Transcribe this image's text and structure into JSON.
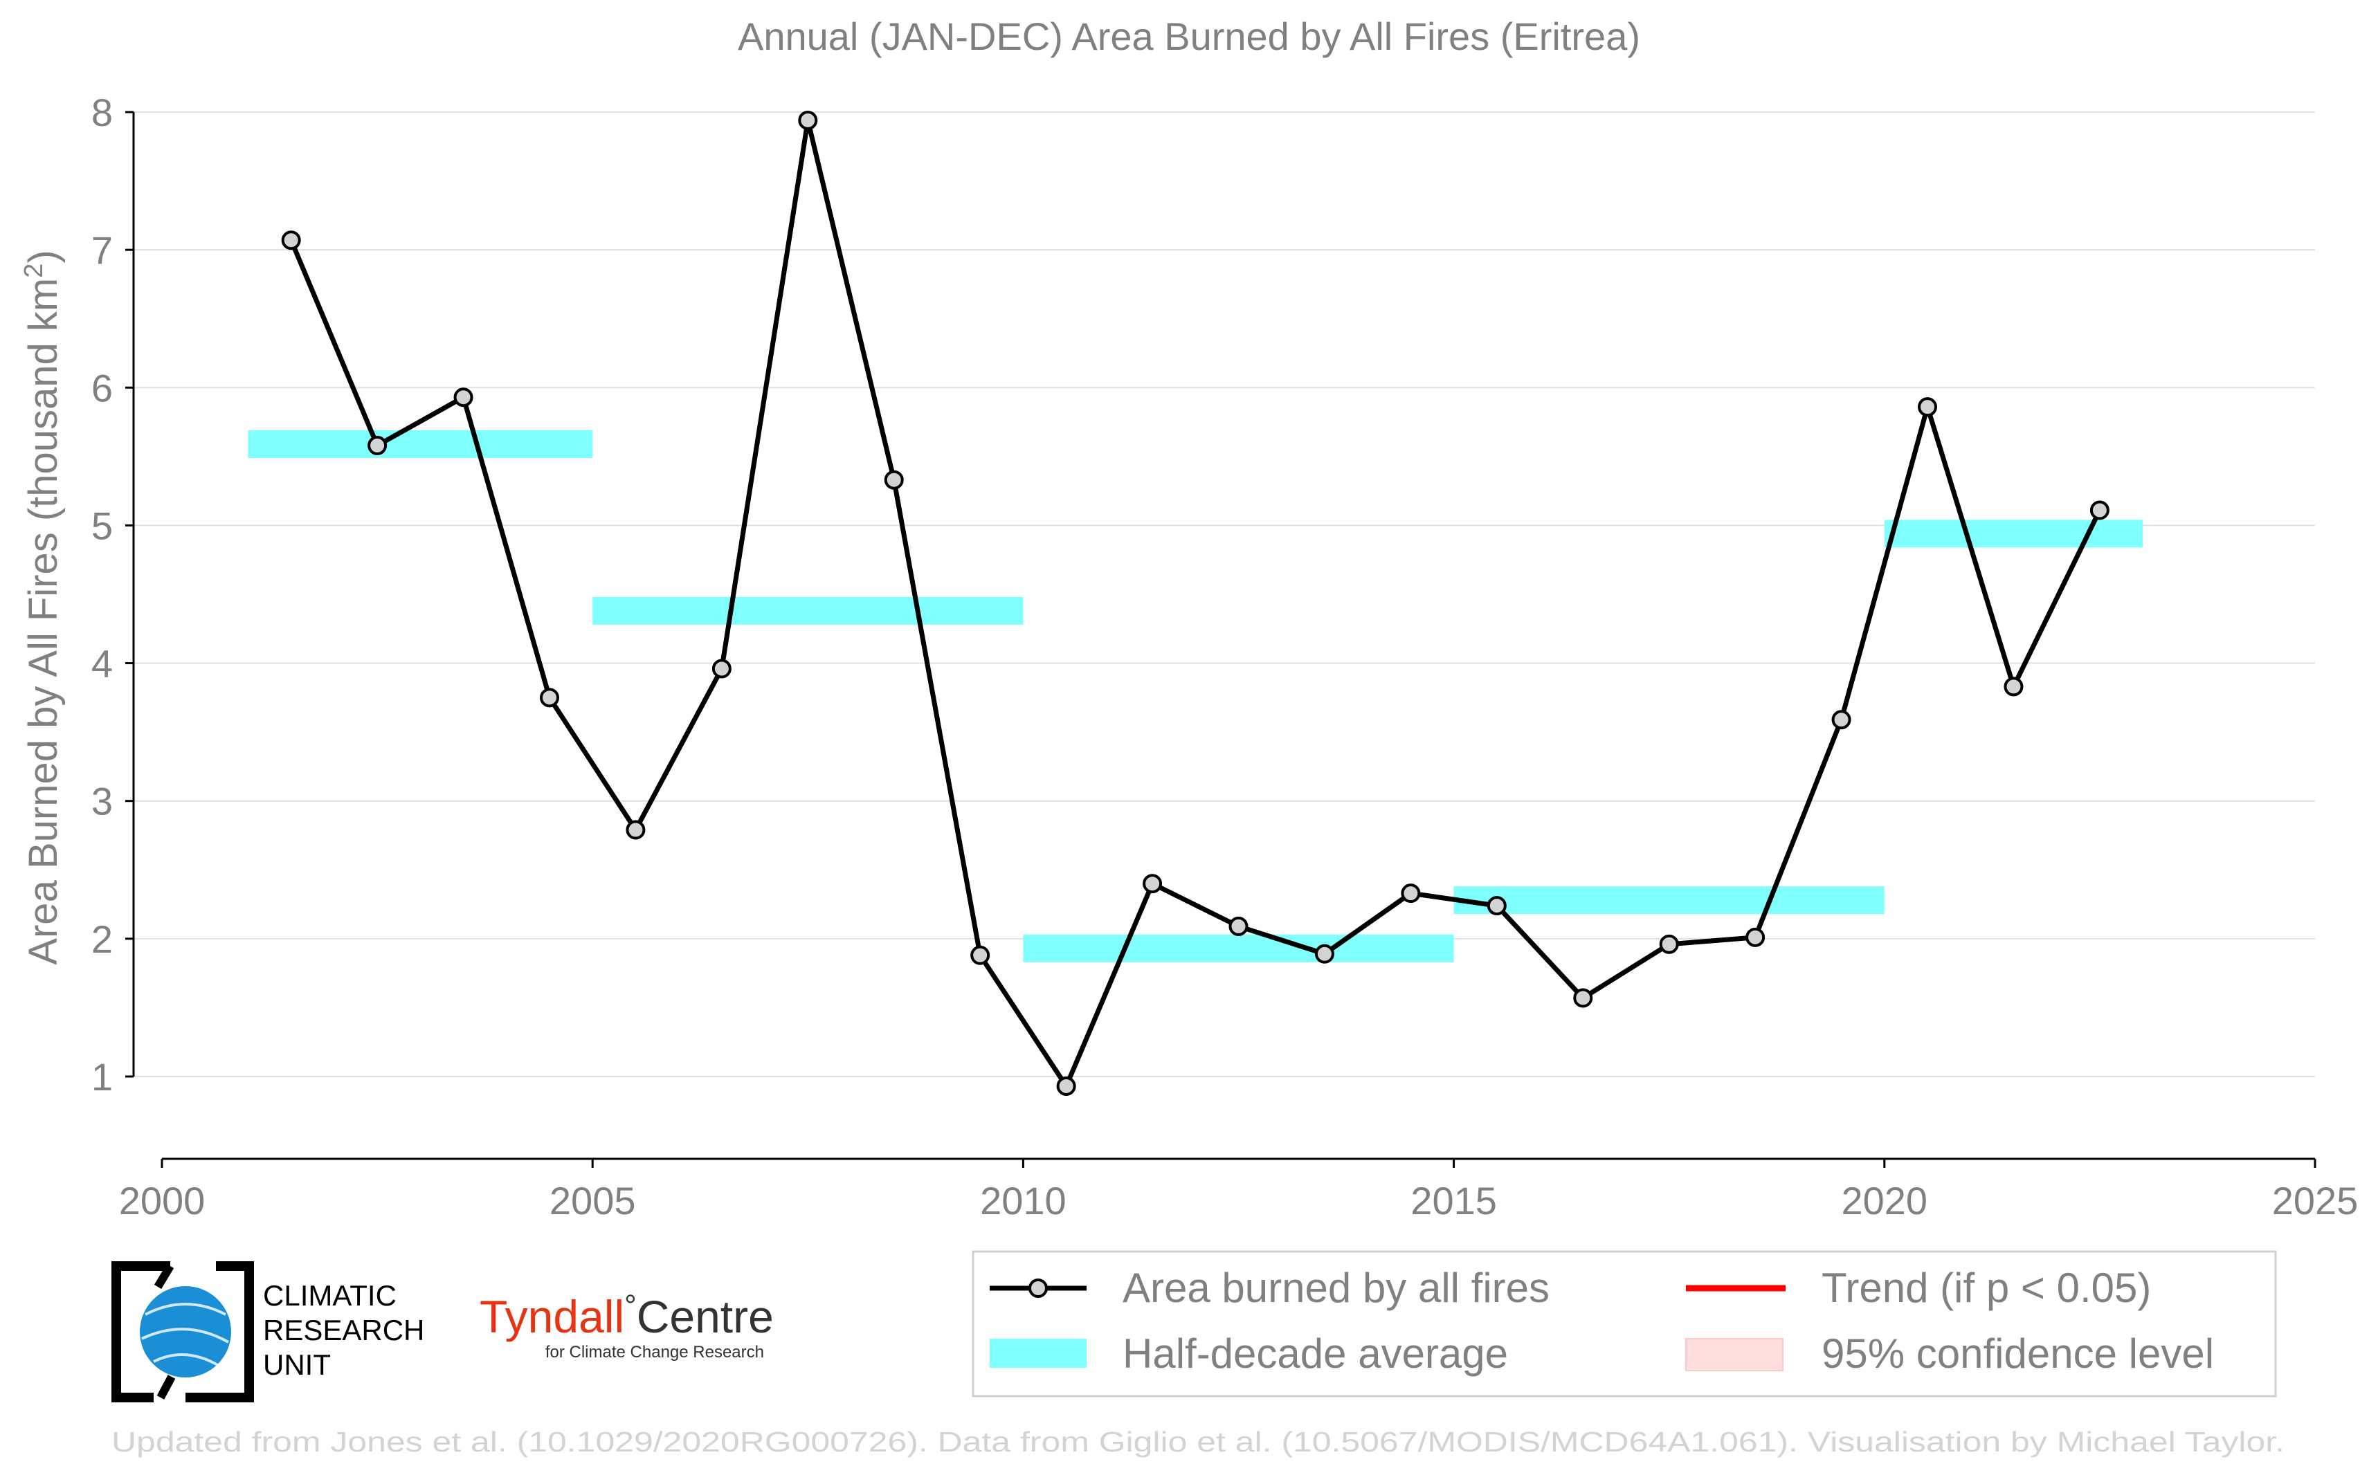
{
  "chart_data": {
    "type": "line",
    "title": "Annual (JAN-DEC) Area Burned by All Fires (Eritrea)",
    "ylabel": "Area Burned by All Fires (thousand km",
    "ylabel_sup": "2",
    "ylabel_end": ")",
    "xlabel": "",
    "xlim": [
      2000,
      2025
    ],
    "ylim": [
      0.4,
      8.2
    ],
    "x_ticks": [
      2000,
      2005,
      2010,
      2015,
      2020,
      2025
    ],
    "x_tick_labels": [
      "2000",
      "2005",
      "2010",
      "2015",
      "2020",
      "2025"
    ],
    "y_ticks": [
      1,
      2,
      3,
      4,
      5,
      6,
      7,
      8
    ],
    "y_tick_labels": [
      "1",
      "2",
      "3",
      "4",
      "5",
      "6",
      "7",
      "8"
    ],
    "grid": "horizontal",
    "series": [
      {
        "name": "Area burned by all fires",
        "color": "#000000",
        "marker_color": "#d3d3d3",
        "x": [
          2001.5,
          2002.5,
          2003.5,
          2004.5,
          2005.5,
          2006.5,
          2007.5,
          2008.5,
          2009.5,
          2010.5,
          2011.5,
          2012.5,
          2013.5,
          2014.5,
          2015.5,
          2016.5,
          2017.5,
          2018.5,
          2019.5,
          2020.5,
          2021.5,
          2022.5
        ],
        "values": [
          7.07,
          5.58,
          5.93,
          3.75,
          2.79,
          3.96,
          7.94,
          5.33,
          1.88,
          0.93,
          2.4,
          2.09,
          1.89,
          2.33,
          2.24,
          1.57,
          1.96,
          2.01,
          3.59,
          5.86,
          3.83,
          5.11
        ]
      }
    ],
    "half_decade_averages": {
      "name": "Half-decade average",
      "color": "#80ffff",
      "segments": [
        {
          "x_start": 2001,
          "x_end": 2005,
          "value": 5.59
        },
        {
          "x_start": 2005,
          "x_end": 2010,
          "value": 4.38
        },
        {
          "x_start": 2010,
          "x_end": 2015,
          "value": 1.93
        },
        {
          "x_start": 2015,
          "x_end": 2020,
          "value": 2.28
        },
        {
          "x_start": 2020,
          "x_end": 2023,
          "value": 4.94
        }
      ]
    },
    "legend": {
      "placement": "bottom-right",
      "entries": [
        {
          "label": "Area burned by all fires",
          "kind": "line-marker",
          "color": "#000000"
        },
        {
          "label": "Trend (if p < 0.05)",
          "kind": "line",
          "color": "#ff0000"
        },
        {
          "label": "Half-decade average",
          "kind": "patch",
          "color": "#80ffff"
        },
        {
          "label": "95% confidence level",
          "kind": "patch",
          "color": "#ffdede"
        }
      ]
    }
  },
  "logos": {
    "cru_text_line1": "CLIMATIC",
    "cru_text_line2": "RESEARCH",
    "cru_text_line3": "UNIT",
    "tyndall_name": "Tyndall",
    "tyndall_degree": "°",
    "tyndall_centre": "Centre",
    "tyndall_sub": "for Climate Change Research",
    "tyndall_color": "#e63312",
    "cru_globe_color": "#1b8fd6"
  },
  "footer": {
    "credit": "Updated from Jones et al. (10.1029/2020RG000726). Data from Giglio et al. (10.5067/MODIS/MCD64A1.061). Visualisation by Michael Taylor."
  },
  "colors": {
    "text_gray": "#808080",
    "grid": "#e0e0e0",
    "axis": "#000000",
    "footer_gray": "#d3d3d3"
  }
}
